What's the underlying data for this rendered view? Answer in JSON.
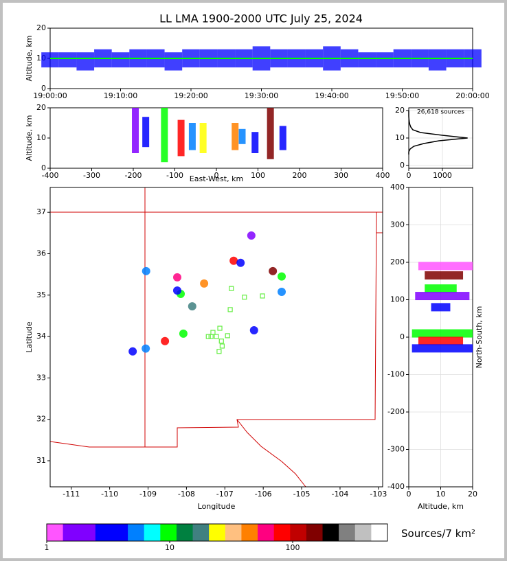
{
  "chart_data": [
    {
      "type": "band",
      "title": "LL LMA 1900-2000 UTC July 25, 2024",
      "ylabel": "Altitude, km",
      "xlim": [
        0,
        60
      ],
      "xticks": [
        {
          "value": 0,
          "label": "19:00:00"
        },
        {
          "value": 10,
          "label": "19:10:00"
        },
        {
          "value": 20,
          "label": "19:20:00"
        },
        {
          "value": 30,
          "label": "19:30:00"
        },
        {
          "value": 40,
          "label": "19:40:00"
        },
        {
          "value": 50,
          "label": "19:50:00"
        },
        {
          "value": 60,
          "label": "20:00:00"
        }
      ],
      "ylim": [
        0,
        20
      ],
      "yticks": [
        0,
        10,
        20
      ],
      "x": [
        0,
        2.5,
        5,
        7.5,
        10,
        12.5,
        15,
        17.5,
        20,
        22.5,
        25,
        27.5,
        30,
        32.5,
        35,
        37.5,
        40,
        42.5,
        45,
        47.5,
        50,
        52.5,
        55,
        57.5,
        60
      ],
      "low": [
        7,
        7,
        6,
        7,
        7,
        7,
        7,
        6,
        7,
        7,
        7,
        7,
        6,
        7,
        7,
        7,
        6,
        7,
        7,
        7,
        7,
        7,
        6,
        7,
        7
      ],
      "high": [
        12,
        12,
        12,
        13,
        12,
        13,
        13,
        12,
        13,
        13,
        13,
        13,
        14,
        13,
        13,
        13,
        14,
        13,
        12,
        12,
        13,
        13,
        13,
        13,
        13
      ],
      "mid": [
        10,
        10,
        10,
        10,
        10,
        10,
        10,
        10,
        10,
        10,
        10,
        10,
        10,
        10,
        10,
        10,
        10,
        10,
        10,
        10,
        10,
        10,
        10,
        10,
        10
      ],
      "color": "#0000ff",
      "mid_color": "#00ff00"
    },
    {
      "type": "range",
      "orientation": "vertical",
      "xlabel": "East-West, km",
      "ylabel": "Altitude, km",
      "xlim": [
        -400,
        400
      ],
      "xticks": [
        -400,
        -300,
        -200,
        -100,
        0,
        100,
        200,
        300,
        400
      ],
      "ylim": [
        0,
        20
      ],
      "yticks": [
        0,
        10,
        20
      ],
      "x": [
        -195,
        -170,
        -125,
        -85,
        -58,
        -32,
        45,
        62,
        93,
        130,
        160
      ],
      "low": [
        5,
        7,
        2,
        4,
        6,
        5,
        6,
        8,
        5,
        3,
        6
      ],
      "high": [
        20,
        17,
        20,
        16,
        15,
        15,
        15,
        13,
        12,
        20,
        14
      ],
      "colors": [
        "#8000ff",
        "#0000ff",
        "#00ff00",
        "#ff0000",
        "#0080ff",
        "#ffff00",
        "#ff8000",
        "#0080ff",
        "#0000ff",
        "#800000",
        "#0000ff"
      ]
    },
    {
      "type": "line",
      "annotation": "26,618 sources",
      "xlim": [
        0,
        1900
      ],
      "xticks": [
        0,
        1000
      ],
      "ylim": [
        -1,
        21
      ],
      "yticks": [
        0,
        10,
        20
      ],
      "grid": true,
      "x": [
        0,
        0,
        40,
        150,
        450,
        900,
        1750,
        1000,
        350,
        120,
        60,
        30,
        15,
        5,
        0,
        0,
        0
      ],
      "y": [
        4,
        5,
        6,
        7,
        8,
        9,
        10,
        11,
        12,
        13,
        14,
        15,
        16,
        17,
        18,
        19,
        20
      ],
      "color": "#000000"
    },
    {
      "type": "scatter",
      "xlabel": "Longitude",
      "ylabel": "Latitude",
      "xlim": [
        -111.55,
        -102.89
      ],
      "xticks": [
        -111,
        -110,
        -109,
        -108,
        -107,
        -106,
        -105,
        -104,
        -103
      ],
      "ylim": [
        30.37,
        37.6
      ],
      "yticks": [
        31,
        32,
        33,
        34,
        35,
        36,
        37
      ],
      "points": {
        "x": [
          -109.05,
          -108.24,
          -108.15,
          -108.24,
          -107.54,
          -107.85,
          -108.08,
          -108.56,
          -109.4,
          -109.06,
          -106.77,
          -106.59,
          -106.31,
          -105.75,
          -105.52,
          -106.24,
          -105.52
        ],
        "y": [
          35.58,
          35.43,
          35.03,
          35.11,
          35.28,
          34.73,
          34.07,
          33.89,
          33.64,
          33.71,
          35.83,
          35.78,
          36.44,
          35.58,
          35.45,
          34.15,
          35.08
        ],
        "colors": [
          "#0080ff",
          "#ff0080",
          "#00ff00",
          "#0000ff",
          "#ff8000",
          "#408080",
          "#00ff00",
          "#ff0000",
          "#0000ff",
          "#0080ff",
          "#ff0000",
          "#0000ff",
          "#8000ff",
          "#800000",
          "#00ff00",
          "#0000ff",
          "#0080ff"
        ]
      },
      "stations": {
        "x": [
          -106.83,
          -106.49,
          -106.02,
          -106.86,
          -107.13,
          -107.31,
          -107.43,
          -107.22,
          -106.93,
          -107.09,
          -107.07,
          -107.15,
          -107.36
        ],
        "y": [
          35.16,
          34.95,
          34.98,
          34.65,
          34.2,
          34.1,
          34.0,
          34.0,
          34.02,
          33.89,
          33.77,
          33.64,
          34.0
        ],
        "color": "#66ee44"
      }
    },
    {
      "type": "range",
      "orientation": "horizontal",
      "xlabel": "Altitude, km",
      "ylabel": "North-South, km",
      "ylabel_side": "right",
      "xlim": [
        0,
        20
      ],
      "xticks": [
        0,
        10,
        20
      ],
      "ylim": [
        -400,
        400
      ],
      "yticks": [
        -400,
        -300,
        -200,
        -100,
        0,
        100,
        200,
        300,
        400
      ],
      "grid": true,
      "y": [
        190,
        165,
        130,
        110,
        80,
        10,
        -10,
        -30
      ],
      "low": [
        3,
        5,
        5,
        2,
        7,
        1,
        3,
        1
      ],
      "high": [
        20,
        17,
        15,
        19,
        13,
        20,
        17,
        20
      ],
      "colors": [
        "#ff55ff",
        "#800000",
        "#00ff00",
        "#8000ff",
        "#0000ff",
        "#00ff00",
        "#ff0000",
        "#0000ff"
      ]
    },
    {
      "type": "colorbar",
      "label": "Sources/7 km²",
      "log": true,
      "lim": [
        1,
        590
      ],
      "ticks": [
        1,
        10,
        100
      ],
      "colors": [
        "#ff55ff",
        "#8000ff",
        "#8000ff",
        "#0000ff",
        "#0000ff",
        "#0080ff",
        "#00ffff",
        "#00ff00",
        "#008040",
        "#408080",
        "#ffff00",
        "#ffc080",
        "#ff8000",
        "#ff0080",
        "#ff0000",
        "#c00000",
        "#800000",
        "#000000",
        "#808080",
        "#c0c0c0",
        "#ffffff"
      ]
    }
  ]
}
